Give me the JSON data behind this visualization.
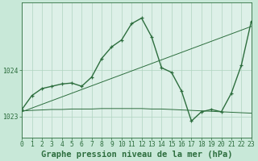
{
  "title": "Graphe pression niveau de la mer (hPa)",
  "bg_color": "#c8e8d8",
  "plot_bg_color": "#ddf0e8",
  "grid_color": "#b0d4c0",
  "line_color": "#2d6e3e",
  "hours": [
    0,
    1,
    2,
    3,
    4,
    5,
    6,
    7,
    8,
    9,
    10,
    11,
    12,
    13,
    14,
    15,
    16,
    17,
    18,
    19,
    20,
    21,
    22,
    23
  ],
  "pressure_main": [
    1023.15,
    1023.45,
    1023.6,
    1023.65,
    1023.7,
    1023.72,
    1023.65,
    1023.85,
    1024.25,
    1024.5,
    1024.65,
    1025.0,
    1025.12,
    1024.72,
    1024.05,
    1023.95,
    1023.55,
    1022.9,
    1023.1,
    1023.15,
    1023.1,
    1023.5,
    1024.1,
    1025.05
  ],
  "trend_line": [
    1023.1,
    1023.18,
    1023.26,
    1023.34,
    1023.42,
    1023.5,
    1023.58,
    1023.66,
    1023.74,
    1023.82,
    1023.9,
    1023.98,
    1024.06,
    1024.14,
    1024.22,
    1024.3,
    1024.38,
    1024.46,
    1024.54,
    1024.62,
    1024.7,
    1024.78,
    1024.86,
    1024.94
  ],
  "flat_line": [
    1023.12,
    1023.13,
    1023.14,
    1023.15,
    1023.15,
    1023.16,
    1023.16,
    1023.16,
    1023.17,
    1023.17,
    1023.17,
    1023.17,
    1023.17,
    1023.16,
    1023.16,
    1023.15,
    1023.14,
    1023.13,
    1023.12,
    1023.11,
    1023.1,
    1023.09,
    1023.08,
    1023.07
  ],
  "ylim": [
    1022.55,
    1025.45
  ],
  "ytick_vals": [
    1023.0,
    1024.0
  ],
  "ytick_labels": [
    "1023",
    "1024"
  ],
  "xlim": [
    0,
    23
  ],
  "title_fontsize": 7.5,
  "tick_fontsize": 5.8,
  "figsize": [
    3.2,
    2.0
  ],
  "dpi": 100
}
